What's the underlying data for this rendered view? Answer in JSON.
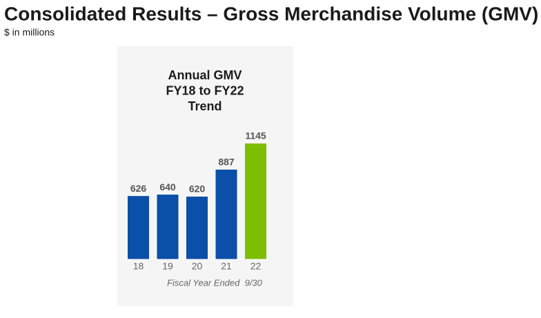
{
  "header": {
    "title": "Consolidated Results – Gross Merchandise Volume (GMV)",
    "subtitle": "$ in millions"
  },
  "chart_data": {
    "type": "bar",
    "title_lines": [
      "Annual GMV",
      "FY18 to FY22",
      "Trend"
    ],
    "categories": [
      "18",
      "19",
      "20",
      "21",
      "22"
    ],
    "values": [
      626,
      640,
      620,
      887,
      1145
    ],
    "colors": [
      "#0a4fa8",
      "#0a4fa8",
      "#0a4fa8",
      "#0a4fa8",
      "#7dbe00"
    ],
    "xlabel": "Fiscal Year Ended  9/30"
  }
}
